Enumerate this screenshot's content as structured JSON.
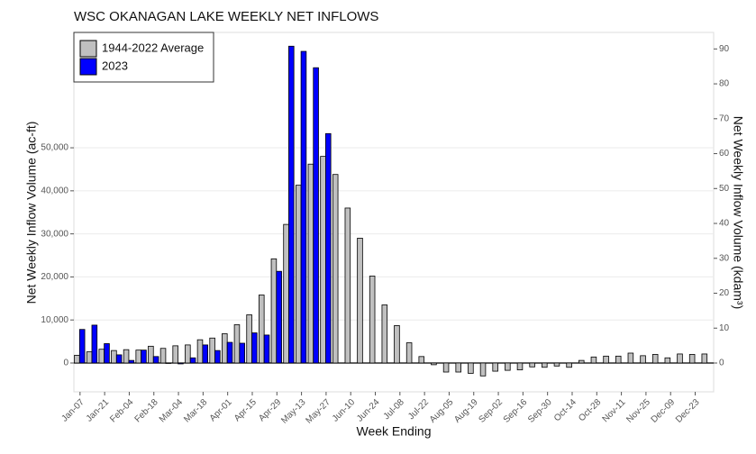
{
  "chart_data": {
    "type": "bar",
    "title": "WSC OKANAGAN LAKE WEEKLY NET INFLOWS",
    "xlabel": "Week Ending",
    "ylabel": "Net Weekly Inflow Volume (ac-ft)",
    "y2label": "Net Weekly Inflow Volume (kdam³)",
    "categories": [
      "Jan-07",
      null,
      "Jan-21",
      null,
      "Feb-04",
      null,
      "Feb-18",
      null,
      "Mar-04",
      null,
      "Mar-18",
      null,
      "Apr-01",
      null,
      "Apr-15",
      null,
      "Apr-29",
      null,
      "May-13",
      null,
      "May-27",
      null,
      "Jun-10",
      null,
      "Jun-24",
      null,
      "Jul-08",
      null,
      "Jul-22",
      null,
      "Aug-05",
      null,
      "Aug-19",
      null,
      "Sep-02",
      null,
      "Sep-16",
      null,
      "Sep-30",
      null,
      "Oct-14",
      null,
      "Oct-28",
      null,
      "Nov-11",
      null,
      "Nov-25",
      null,
      "Dec-09",
      null,
      "Dec-23",
      null
    ],
    "series": [
      {
        "name": "1944-2022 Average",
        "color": "#c0c0c0",
        "values": [
          1800,
          2600,
          3200,
          2900,
          3100,
          3000,
          3900,
          3400,
          4000,
          4200,
          5400,
          5800,
          6800,
          8900,
          11200,
          15800,
          24200,
          32200,
          41300,
          46200,
          48000,
          43800,
          36000,
          29000,
          20200,
          13500,
          8700,
          4700,
          1500,
          -400,
          -2100,
          -2100,
          -2400,
          -3000,
          -1900,
          -1700,
          -1600,
          -900,
          -1000,
          -700,
          -1000,
          600,
          1400,
          1600,
          1600,
          2300,
          1700,
          2000,
          1200,
          2100,
          2000,
          2100
        ]
      },
      {
        "name": "2023",
        "color": "#0000ff",
        "values": [
          7800,
          8800,
          4500,
          1900,
          600,
          3000,
          1500,
          -100,
          -200,
          1200,
          4200,
          2900,
          4800,
          4600,
          7000,
          6500,
          21300,
          73600,
          72400,
          68600,
          53300,
          null,
          null,
          null,
          null,
          null,
          null,
          null,
          null,
          null,
          null,
          null,
          null,
          null,
          null,
          null,
          null,
          null,
          null,
          null,
          null,
          null,
          null,
          null,
          null,
          null,
          null,
          null,
          null,
          null,
          null,
          null
        ]
      }
    ],
    "ylim": [
      -6700,
      76800
    ],
    "yticks": [
      0,
      {
        "value": 10000,
        "label": "10,000"
      },
      {
        "value": 20000,
        "label": "20,000"
      },
      {
        "value": 30000,
        "label": "30,000"
      },
      {
        "value": 40000,
        "label": "40,000"
      },
      {
        "value": 50000,
        "label": "50,000"
      }
    ],
    "y2lim": [
      -8.26,
      94.73
    ],
    "y2ticks": [
      0,
      10,
      20,
      30,
      40,
      50,
      60,
      70,
      80,
      90
    ],
    "grid": true,
    "legend": "top-left"
  }
}
